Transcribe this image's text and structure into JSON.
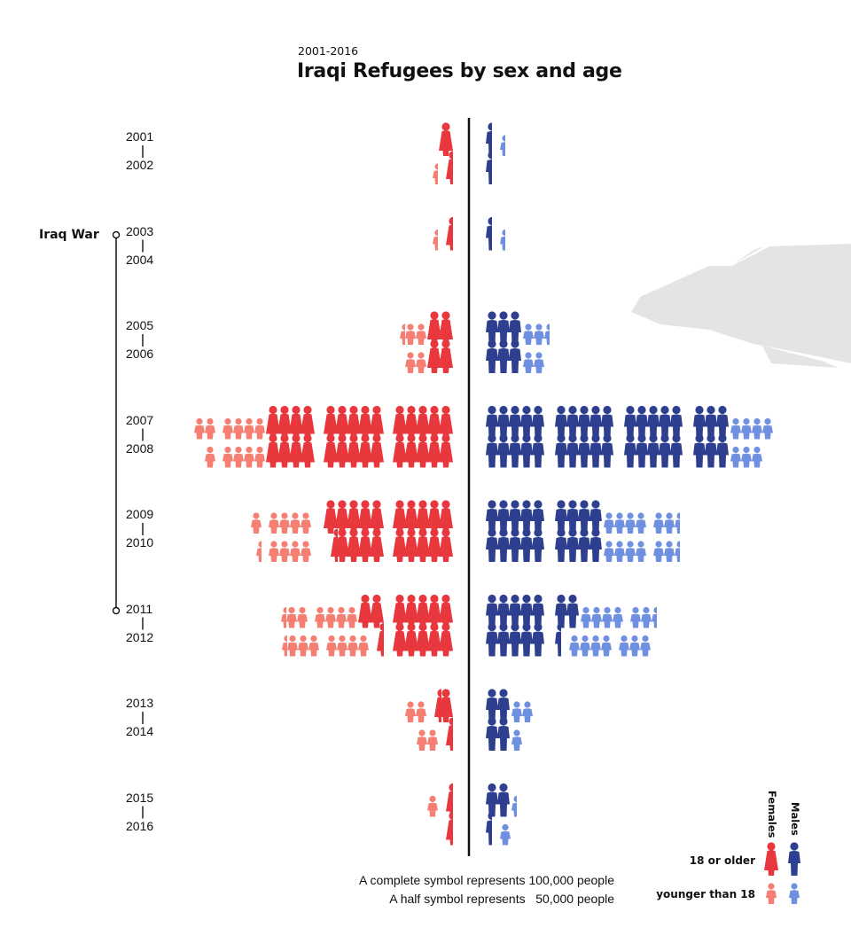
{
  "subtitle": "2001-2016",
  "title": "Iraqi Refugees by sex and age",
  "annotation": {
    "label": "Iraq War"
  },
  "notes": {
    "complete": "A complete symbol represents 100,000 people",
    "half": "A half symbol represents   50,000 people"
  },
  "legend": {
    "females": "Females",
    "males": "Males",
    "adult": "18 or older",
    "child": "younger than 18"
  },
  "colors": {
    "female_adult": "#e8383d",
    "female_child": "#f47f72",
    "male_adult": "#2e3f8f",
    "male_child": "#6f8fe0",
    "axis": "#111111",
    "plane": "#e4e4e4"
  },
  "icons": [
    "female-adult-icon",
    "female-child-icon",
    "male-adult-icon",
    "male-child-icon",
    "plane-silhouette-icon"
  ],
  "chart_data": {
    "type": "pictogram",
    "unit": "1 symbol = 100,000 people",
    "years": [
      "2001",
      "2002",
      "2003",
      "2004",
      "2005",
      "2006",
      "2007",
      "2008",
      "2009",
      "2010",
      "2011",
      "2012",
      "2013",
      "2014",
      "2015",
      "2016"
    ],
    "series": [
      {
        "name": "Females 18 or older",
        "values": [
          1.0,
          0.5,
          0.5,
          0,
          2.0,
          2.0,
          14.0,
          14.0,
          10.0,
          9.5,
          7.0,
          5.5,
          1.5,
          0.5,
          0.5,
          0.5
        ]
      },
      {
        "name": "Females younger than 18",
        "values": [
          0,
          0.5,
          0.5,
          0,
          2.5,
          2.0,
          6.0,
          5.0,
          5.0,
          4.5,
          6.5,
          7.5,
          2.0,
          2.0,
          1.0,
          0
        ]
      },
      {
        "name": "Males 18 or older",
        "values": [
          0.5,
          0.5,
          0.5,
          0,
          3.0,
          3.0,
          18.0,
          18.0,
          9.0,
          9.0,
          7.0,
          5.5,
          2.0,
          2.0,
          2.0,
          0.5
        ]
      },
      {
        "name": "Males younger than 18",
        "values": [
          0.5,
          0,
          0.5,
          0,
          2.5,
          2.0,
          4.0,
          3.0,
          6.5,
          6.5,
          6.5,
          7.0,
          2.0,
          1.0,
          0.5,
          1.0
        ]
      }
    ]
  }
}
